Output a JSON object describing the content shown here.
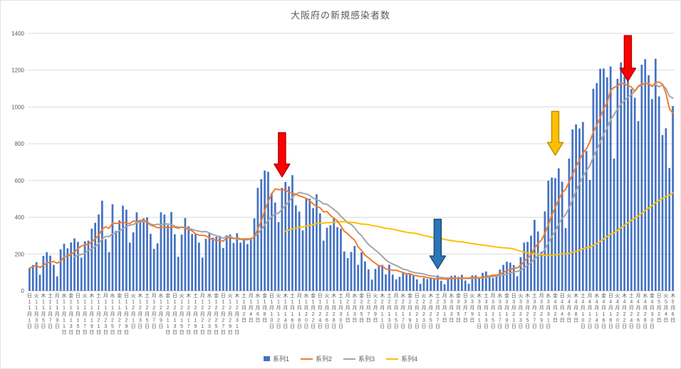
{
  "title": "大阪府の新規感染者数",
  "legend": [
    {
      "label": "系列1",
      "color": "#4472C4",
      "marker": "square"
    },
    {
      "label": "系列2",
      "color": "#ED7D31",
      "marker": "line"
    },
    {
      "label": "系列3",
      "color": "#A5A5A5",
      "marker": "line"
    },
    {
      "label": "系列4",
      "color": "#FFC000",
      "marker": "line"
    }
  ],
  "colors": {
    "bar": "#4472C4",
    "line2": "#ED7D31",
    "line3": "#A5A5A5",
    "line4": "#FFC000",
    "grid": "#D9D9D9",
    "axis": "#BFBFBF",
    "tick_text": "#595959"
  },
  "chart_data": {
    "type": "bar",
    "title": "大阪府の新規感染者数",
    "start_date": "2020-11-01",
    "months": [
      {
        "month": 11,
        "days": 30
      },
      {
        "month": 12,
        "days": 31
      },
      {
        "month": 1,
        "days": 31
      },
      {
        "month": 2,
        "days": 28
      },
      {
        "month": 3,
        "days": 31
      },
      {
        "month": 4,
        "days": 30
      },
      {
        "month": 5,
        "days": 6
      }
    ],
    "weekday_cycle": [
      "日",
      "火",
      "木",
      "土",
      "月",
      "水",
      "金"
    ],
    "tick_every_days": 2,
    "ylim": [
      0,
      1400
    ],
    "ytick_step": 200,
    "grid": true,
    "legend_position": "bottom",
    "series": [
      {
        "name": "系列1",
        "type": "bar",
        "color": "#4472C4",
        "values": [
          123,
          140,
          156,
          87,
          190,
          210,
          191,
          141,
          78,
          226,
          256,
          231,
          263,
          285,
          266,
          180,
          269,
          273,
          338,
          370,
          415,
          490,
          281,
          210,
          471,
          326,
          383,
          463,
          441,
          262,
          318,
          427,
          386,
          394,
          399,
          310,
          228,
          258,
          427,
          415,
          357,
          429,
          308,
          185,
          306,
          396,
          351,
          309,
          311,
          262,
          180,
          283,
          312,
          289,
          294,
          299,
          233,
          302,
          307,
          260,
          313,
          262,
          286,
          254,
          287,
          394,
          560,
          607,
          654,
          647,
          532,
          480,
          374,
          560,
          592,
          568,
          629,
          464,
          431,
          328,
          506,
          501,
          450,
          525,
          421,
          273,
          343,
          357,
          397,
          346,
          338,
          214,
          178,
          211,
          244,
          141,
          209,
          160,
          117,
          61,
          119,
          141,
          141,
          89,
          142,
          88,
          62,
          76,
          100,
          91,
          91,
          86,
          62,
          38,
          70,
          64,
          72,
          69,
          84,
          54,
          36,
          65,
          81,
          84,
          76,
          87,
          56,
          38,
          84,
          84,
          74,
          98,
          105,
          84,
          70,
          87,
          115,
          141,
          158,
          153,
          140,
          79,
          183,
          262,
          266,
          300,
          386,
          323,
          213,
          432,
          599,
          616,
          613,
          666,
          593,
          341,
          719,
          878,
          905,
          883,
          918,
          760,
          603,
          1099,
          1130,
          1208,
          1209,
          1161,
          1220,
          719,
          1153,
          1242,
          1167,
          1162,
          1097,
          1050,
          923,
          1230,
          1260,
          1172,
          1043,
          1262,
          1057,
          847,
          884,
          668,
          1005
        ]
      },
      {
        "name": "系列2",
        "type": "line",
        "color": "#ED7D31",
        "derived": "moving_average",
        "window": 7,
        "partial_start": true
      },
      {
        "name": "系列3",
        "type": "line",
        "color": "#A5A5A5",
        "derived": "moving_average",
        "window": 14,
        "partial_start": false
      },
      {
        "name": "系列4",
        "type": "line",
        "color": "#FFC000",
        "derived": "moving_average",
        "window": 75,
        "partial_start": false
      }
    ],
    "annotations": [
      {
        "name": "red-arrow-january-peak",
        "shape": "down-arrow",
        "fill": "#FF0000",
        "stroke": "#B30000",
        "day_index": 73,
        "value_top": 860,
        "value_tip": 620
      },
      {
        "name": "blue-arrow-march-trough",
        "shape": "down-arrow",
        "fill": "#2E75B6",
        "stroke": "#1F4E79",
        "day_index": 118,
        "value_top": 389,
        "value_tip": 120
      },
      {
        "name": "gold-arrow-april-rise",
        "shape": "down-arrow",
        "fill": "#FFC000",
        "stroke": "#BF8F00",
        "day_index": 152,
        "value_top": 976,
        "value_tip": 737
      },
      {
        "name": "red-arrow-april-peak",
        "shape": "down-arrow",
        "fill": "#FF0000",
        "stroke": "#B30000",
        "day_index": 173,
        "value_top": 1388,
        "value_tip": 1141
      }
    ]
  }
}
